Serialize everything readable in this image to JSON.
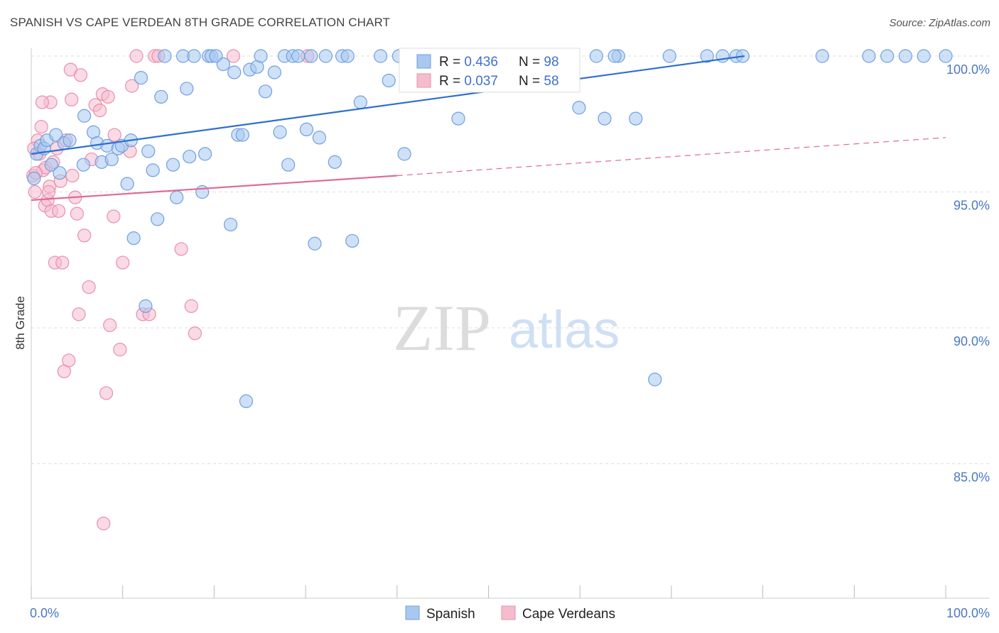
{
  "title": "SPANISH VS CAPE VERDEAN 8TH GRADE CORRELATION CHART",
  "source": "Source: ZipAtlas.com",
  "watermark": {
    "zip": "ZIP",
    "atlas": "atlas"
  },
  "colors": {
    "blue_fill": "#a8c8f0",
    "blue_stroke": "#6f9fe0",
    "blue_line": "#2e6fce",
    "pink_fill": "#f5bccd",
    "pink_stroke": "#e98fab",
    "pink_line": "#e06a95",
    "tick_label": "#4a78c6",
    "grid": "#dddddd"
  },
  "legend": {
    "rows": [
      {
        "r_label": "R = ",
        "r_value": "0.436",
        "n_label": "N = ",
        "n_value": "98"
      },
      {
        "r_label": "R = ",
        "r_value": "0.037",
        "n_label": "N = ",
        "n_value": "58"
      }
    ]
  },
  "bottom_legend": {
    "spanish": "Spanish",
    "cape_verdeans": "Cape Verdeans"
  },
  "chart_data": {
    "type": "scatter",
    "ylabel": "8th Grade",
    "x_tick_labels": {
      "min": "0.0%",
      "max": "100.0%"
    },
    "y_tick_labels": [
      "100.0%",
      "95.0%",
      "90.0%",
      "85.0%"
    ],
    "y_tick_values": [
      100,
      95,
      90,
      85
    ],
    "xlim": [
      0,
      100
    ],
    "ylim": [
      80.5,
      100.5
    ],
    "grid": true,
    "series": [
      {
        "name": "Spanish",
        "color": "#a8c8f0",
        "trend": {
          "x": [
            0,
            78
          ],
          "y": [
            96.4,
            100.0
          ],
          "style": "solid"
        },
        "points": [
          [
            0.3,
            95.5
          ],
          [
            0.6,
            96.4
          ],
          [
            1.0,
            96.7
          ],
          [
            1.4,
            96.6
          ],
          [
            1.7,
            96.9
          ],
          [
            2.2,
            96.0
          ],
          [
            2.7,
            97.1
          ],
          [
            3.1,
            95.7
          ],
          [
            3.6,
            96.8
          ],
          [
            4.2,
            96.9
          ],
          [
            5.7,
            96.0
          ],
          [
            5.8,
            97.8
          ],
          [
            6.8,
            97.2
          ],
          [
            7.2,
            96.8
          ],
          [
            7.7,
            96.1
          ],
          [
            8.3,
            96.7
          ],
          [
            8.8,
            96.2
          ],
          [
            9.5,
            96.6
          ],
          [
            9.9,
            96.7
          ],
          [
            10.5,
            95.3
          ],
          [
            10.9,
            96.9
          ],
          [
            11.2,
            93.3
          ],
          [
            12.0,
            99.2
          ],
          [
            12.5,
            90.8
          ],
          [
            12.8,
            96.5
          ],
          [
            13.3,
            95.8
          ],
          [
            13.8,
            94.0
          ],
          [
            14.2,
            98.5
          ],
          [
            14.6,
            100.0
          ],
          [
            15.5,
            96.0
          ],
          [
            15.9,
            94.8
          ],
          [
            16.6,
            100.0
          ],
          [
            17.0,
            98.8
          ],
          [
            17.3,
            96.3
          ],
          [
            17.8,
            100.0
          ],
          [
            18.7,
            95.0
          ],
          [
            19.0,
            96.4
          ],
          [
            19.4,
            100.0
          ],
          [
            19.7,
            100.0
          ],
          [
            20.2,
            100.0
          ],
          [
            21.0,
            99.7
          ],
          [
            21.8,
            93.8
          ],
          [
            22.2,
            99.4
          ],
          [
            22.6,
            97.1
          ],
          [
            23.1,
            97.1
          ],
          [
            23.5,
            87.3
          ],
          [
            23.9,
            99.5
          ],
          [
            24.7,
            99.6
          ],
          [
            25.1,
            100.0
          ],
          [
            25.6,
            98.7
          ],
          [
            26.6,
            99.4
          ],
          [
            27.2,
            97.2
          ],
          [
            27.7,
            100.0
          ],
          [
            28.1,
            96.0
          ],
          [
            28.6,
            100.0
          ],
          [
            29.2,
            100.0
          ],
          [
            30.1,
            97.3
          ],
          [
            30.6,
            100.0
          ],
          [
            31.0,
            93.1
          ],
          [
            31.5,
            97.0
          ],
          [
            32.2,
            100.0
          ],
          [
            33.2,
            96.1
          ],
          [
            34.0,
            100.0
          ],
          [
            34.6,
            100.0
          ],
          [
            35.1,
            93.2
          ],
          [
            36.0,
            98.3
          ],
          [
            38.2,
            100.0
          ],
          [
            39.1,
            99.1
          ],
          [
            40.2,
            100.0
          ],
          [
            40.8,
            96.4
          ],
          [
            42.1,
            100.0
          ],
          [
            43.8,
            100.0
          ],
          [
            45.2,
            100.0
          ],
          [
            47.5,
            100.0
          ],
          [
            49.6,
            100.0
          ],
          [
            51.3,
            100.0
          ],
          [
            54.1,
            100.0
          ],
          [
            56.1,
            100.0
          ],
          [
            57.6,
            100.0
          ],
          [
            59.9,
            98.1
          ],
          [
            61.8,
            100.0
          ],
          [
            64.2,
            100.0
          ],
          [
            66.1,
            97.7
          ],
          [
            68.2,
            88.1
          ],
          [
            69.8,
            100.0
          ],
          [
            73.9,
            100.0
          ],
          [
            75.6,
            100.0
          ],
          [
            77.1,
            100.0
          ],
          [
            77.8,
            100.0
          ],
          [
            63.8,
            100.0
          ],
          [
            46.7,
            97.7
          ],
          [
            86.5,
            100.0
          ],
          [
            91.6,
            100.0
          ],
          [
            93.6,
            100.0
          ],
          [
            95.6,
            100.0
          ],
          [
            97.6,
            100.0
          ],
          [
            62.7,
            97.7
          ],
          [
            100.0,
            100.0
          ]
        ]
      },
      {
        "name": "Cape Verdeans",
        "color": "#f5bccd",
        "trend": {
          "x": [
            0,
            40
          ],
          "y": [
            94.7,
            95.6
          ],
          "style": "solid",
          "dashed_to": {
            "x": 100,
            "y": 97.0
          }
        },
        "points": [
          [
            0.2,
            95.6
          ],
          [
            0.4,
            95.0
          ],
          [
            0.7,
            96.9
          ],
          [
            0.9,
            96.4
          ],
          [
            1.1,
            97.4
          ],
          [
            1.3,
            95.8
          ],
          [
            1.5,
            94.5
          ],
          [
            1.6,
            95.9
          ],
          [
            1.8,
            94.7
          ],
          [
            2.0,
            95.2
          ],
          [
            2.2,
            94.3
          ],
          [
            2.4,
            96.1
          ],
          [
            2.6,
            92.4
          ],
          [
            2.8,
            96.6
          ],
          [
            3.0,
            94.3
          ],
          [
            3.2,
            95.4
          ],
          [
            3.4,
            92.4
          ],
          [
            3.6,
            88.4
          ],
          [
            3.8,
            96.9
          ],
          [
            4.1,
            88.8
          ],
          [
            4.3,
            99.5
          ],
          [
            4.5,
            95.6
          ],
          [
            4.8,
            94.8
          ],
          [
            5.0,
            94.2
          ],
          [
            5.2,
            90.5
          ],
          [
            5.4,
            99.3
          ],
          [
            5.8,
            93.4
          ],
          [
            6.3,
            91.5
          ],
          [
            6.6,
            96.2
          ],
          [
            7.0,
            98.2
          ],
          [
            7.5,
            98.0
          ],
          [
            7.8,
            98.6
          ],
          [
            8.2,
            87.6
          ],
          [
            8.4,
            98.5
          ],
          [
            8.6,
            90.1
          ],
          [
            9.0,
            94.1
          ],
          [
            9.1,
            97.1
          ],
          [
            9.7,
            89.2
          ],
          [
            10.0,
            92.4
          ],
          [
            10.8,
            96.5
          ],
          [
            11.0,
            98.9
          ],
          [
            11.5,
            100.0
          ],
          [
            12.2,
            90.5
          ],
          [
            12.9,
            90.5
          ],
          [
            13.5,
            100.0
          ],
          [
            13.9,
            100.0
          ],
          [
            16.4,
            92.9
          ],
          [
            17.5,
            90.8
          ],
          [
            17.9,
            89.8
          ],
          [
            22.1,
            100.0
          ],
          [
            30.2,
            100.0
          ],
          [
            7.9,
            82.8
          ],
          [
            2.1,
            98.3
          ],
          [
            0.3,
            96.6
          ],
          [
            1.2,
            98.3
          ],
          [
            4.4,
            98.4
          ],
          [
            1.9,
            95.0
          ],
          [
            0.5,
            95.7
          ]
        ]
      }
    ]
  }
}
